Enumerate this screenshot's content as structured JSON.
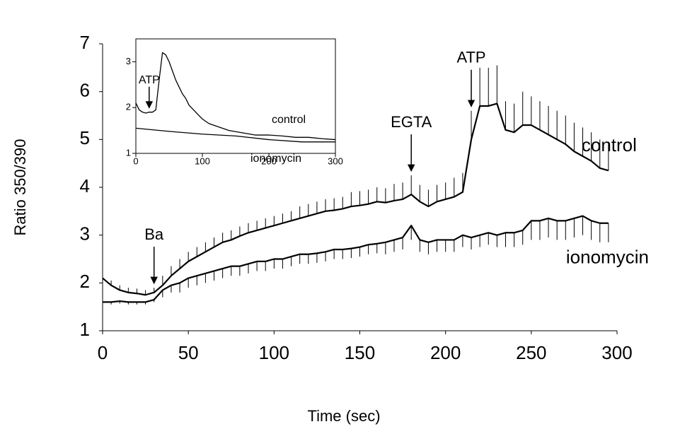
{
  "chart_data": [
    {
      "type": "line",
      "x_label": "Time (sec)",
      "y_label": "Ratio 350/390",
      "xlim": [
        0,
        300
      ],
      "xticks": [
        0,
        50,
        100,
        150,
        200,
        250,
        300
      ],
      "ylim": [
        1,
        7
      ],
      "yticks": [
        1,
        2,
        3,
        4,
        5,
        6,
        7
      ],
      "x": [
        0,
        5,
        10,
        15,
        20,
        25,
        30,
        35,
        40,
        45,
        50,
        55,
        60,
        65,
        70,
        75,
        80,
        85,
        90,
        95,
        100,
        105,
        110,
        115,
        120,
        125,
        130,
        135,
        140,
        145,
        150,
        155,
        160,
        165,
        170,
        175,
        180,
        185,
        190,
        195,
        200,
        205,
        210,
        215,
        220,
        225,
        230,
        235,
        240,
        245,
        250,
        255,
        260,
        265,
        270,
        275,
        280,
        285,
        290,
        295
      ],
      "series": [
        {
          "name": "control",
          "color": "#000000",
          "error_side": "up",
          "values": [
            2.1,
            1.95,
            1.85,
            1.8,
            1.78,
            1.75,
            1.8,
            1.95,
            2.15,
            2.3,
            2.45,
            2.55,
            2.65,
            2.75,
            2.85,
            2.9,
            2.98,
            3.05,
            3.1,
            3.15,
            3.2,
            3.25,
            3.3,
            3.35,
            3.4,
            3.45,
            3.5,
            3.52,
            3.55,
            3.6,
            3.62,
            3.65,
            3.7,
            3.68,
            3.72,
            3.75,
            3.85,
            3.7,
            3.6,
            3.7,
            3.75,
            3.8,
            3.9,
            5.0,
            5.7,
            5.7,
            5.75,
            5.2,
            5.15,
            5.3,
            5.3,
            5.2,
            5.1,
            5.0,
            4.9,
            4.75,
            4.65,
            4.55,
            4.4,
            4.35
          ],
          "errors": [
            0.1,
            0.1,
            0.1,
            0.1,
            0.1,
            0.1,
            0.1,
            0.2,
            0.2,
            0.2,
            0.2,
            0.2,
            0.2,
            0.2,
            0.2,
            0.2,
            0.2,
            0.2,
            0.2,
            0.2,
            0.2,
            0.2,
            0.2,
            0.25,
            0.25,
            0.25,
            0.25,
            0.25,
            0.25,
            0.3,
            0.3,
            0.3,
            0.3,
            0.3,
            0.35,
            0.35,
            0.4,
            0.35,
            0.35,
            0.35,
            0.35,
            0.4,
            0.4,
            0.6,
            0.8,
            0.8,
            0.8,
            0.6,
            0.6,
            0.7,
            0.6,
            0.6,
            0.6,
            0.6,
            0.6,
            0.6,
            0.6,
            0.6,
            0.6,
            0.6
          ]
        },
        {
          "name": "ionomycin",
          "color": "#000000",
          "error_side": "down",
          "values": [
            1.6,
            1.6,
            1.62,
            1.6,
            1.6,
            1.6,
            1.65,
            1.85,
            1.95,
            2.0,
            2.1,
            2.15,
            2.2,
            2.25,
            2.3,
            2.35,
            2.35,
            2.4,
            2.45,
            2.45,
            2.5,
            2.5,
            2.55,
            2.6,
            2.6,
            2.62,
            2.65,
            2.7,
            2.7,
            2.72,
            2.75,
            2.8,
            2.82,
            2.85,
            2.9,
            2.95,
            3.2,
            2.9,
            2.85,
            2.9,
            2.9,
            2.9,
            3.0,
            2.95,
            3.0,
            3.05,
            3.0,
            3.05,
            3.05,
            3.1,
            3.3,
            3.3,
            3.35,
            3.3,
            3.3,
            3.35,
            3.4,
            3.3,
            3.25,
            3.25
          ],
          "errors": [
            0.05,
            0.05,
            0.05,
            0.05,
            0.05,
            0.05,
            0.05,
            0.15,
            0.15,
            0.2,
            0.2,
            0.2,
            0.2,
            0.2,
            0.2,
            0.2,
            0.2,
            0.2,
            0.2,
            0.2,
            0.2,
            0.2,
            0.2,
            0.2,
            0.2,
            0.2,
            0.2,
            0.2,
            0.2,
            0.2,
            0.2,
            0.2,
            0.2,
            0.25,
            0.25,
            0.25,
            0.3,
            0.25,
            0.25,
            0.25,
            0.25,
            0.25,
            0.25,
            0.25,
            0.25,
            0.25,
            0.25,
            0.3,
            0.3,
            0.3,
            0.4,
            0.4,
            0.4,
            0.4,
            0.4,
            0.4,
            0.4,
            0.4,
            0.4,
            0.4
          ]
        }
      ],
      "annotations": [
        {
          "text": "Ba",
          "x": 30
        },
        {
          "text": "EGTA",
          "x": 180
        },
        {
          "text": "ATP",
          "x": 215
        }
      ]
    },
    {
      "type": "line",
      "xlim": [
        0,
        300
      ],
      "xticks": [
        0,
        100,
        200,
        300
      ],
      "ylim": [
        1,
        3.5
      ],
      "yticks": [
        1,
        2,
        3
      ],
      "series": [
        {
          "name": "control",
          "color": "#000000",
          "x": [
            0,
            5,
            10,
            15,
            20,
            25,
            30,
            35,
            40,
            45,
            50,
            55,
            60,
            65,
            70,
            75,
            80,
            90,
            100,
            110,
            120,
            140,
            160,
            180,
            200,
            220,
            240,
            260,
            280,
            300
          ],
          "values": [
            2.1,
            1.95,
            1.9,
            1.88,
            1.9,
            1.9,
            1.95,
            2.6,
            3.2,
            3.15,
            3.0,
            2.8,
            2.6,
            2.45,
            2.3,
            2.2,
            2.05,
            1.9,
            1.75,
            1.65,
            1.6,
            1.5,
            1.45,
            1.4,
            1.4,
            1.38,
            1.35,
            1.35,
            1.32,
            1.3
          ]
        },
        {
          "name": "ionomycin",
          "color": "#000000",
          "x": [
            0,
            50,
            100,
            150,
            200,
            250,
            300
          ],
          "values": [
            1.55,
            1.48,
            1.42,
            1.38,
            1.3,
            1.25,
            1.25
          ]
        }
      ],
      "annotations": [
        {
          "text": "ATP",
          "x": 20
        }
      ]
    }
  ]
}
